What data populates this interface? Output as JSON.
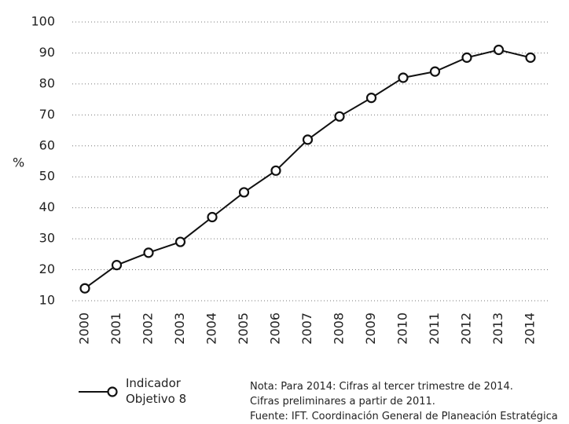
{
  "chart_data": {
    "type": "line",
    "y_label": "%",
    "categories": [
      "2000",
      "2001",
      "2002",
      "2003",
      "2004",
      "2005",
      "2006",
      "2007",
      "2008",
      "2009",
      "2010",
      "2011",
      "2012",
      "2013",
      "2014"
    ],
    "series": [
      {
        "name": "Indicador Objetivo 8",
        "color": "#111111",
        "values": [
          14,
          21.5,
          25.5,
          29,
          37,
          45,
          52,
          62,
          69.5,
          75.5,
          82,
          84,
          88.5,
          91,
          88.5
        ]
      }
    ],
    "ylim": [
      10,
      100
    ],
    "yticks": [
      10,
      20,
      30,
      40,
      50,
      60,
      70,
      80,
      90,
      100
    ],
    "grid": true,
    "notes": [
      "Nota: Para 2014: Cifras al tercer trimestre de 2014.",
      "Cifras preliminares a partir de 2011.",
      "Fuente: IFT. Coordinación General de Planeación Estratégica"
    ]
  }
}
